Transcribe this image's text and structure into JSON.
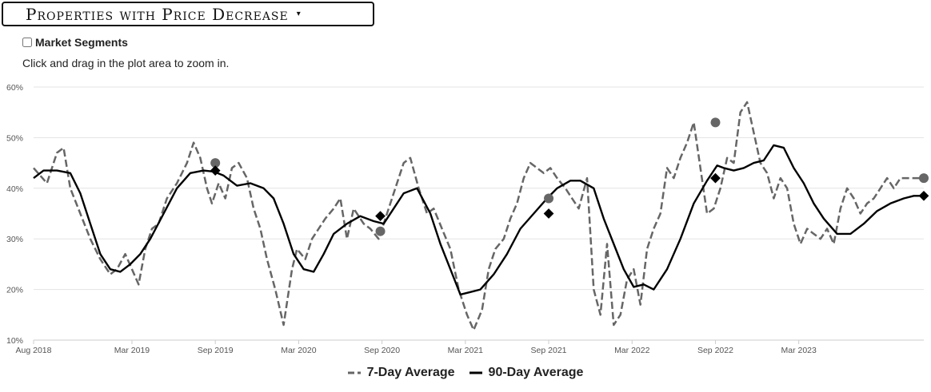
{
  "selector": {
    "label": "Properties with Price Decrease",
    "caret": "▾"
  },
  "segments_label": "Market Segments",
  "hint": "Click and drag in the plot area to zoom in.",
  "colors": {
    "seven_day": "#666666",
    "ninety_day": "#000000",
    "grid": "#e3e3e3"
  },
  "chart_data": {
    "type": "line",
    "title": "Properties with Price Decrease",
    "xlabel": "",
    "ylabel": "",
    "ylim": [
      10,
      60
    ],
    "xlim": [
      2018.58,
      2023.92
    ],
    "y_ticks": [
      "10%",
      "20%",
      "30%",
      "40%",
      "50%",
      "60%"
    ],
    "y_tick_values": [
      10,
      20,
      30,
      40,
      50,
      60
    ],
    "x_ticks": [
      {
        "label": "Aug 2018",
        "x": 2018.58
      },
      {
        "label": "Mar 2019",
        "x": 2019.17
      },
      {
        "label": "Sep 2019",
        "x": 2019.67
      },
      {
        "label": "Mar 2020",
        "x": 2020.17
      },
      {
        "label": "Sep 2020",
        "x": 2020.67
      },
      {
        "label": "Mar 2021",
        "x": 2021.17
      },
      {
        "label": "Sep 2021",
        "x": 2021.67
      },
      {
        "label": "Mar 2022",
        "x": 2022.17
      },
      {
        "label": "Sep 2022",
        "x": 2022.67
      },
      {
        "label": "Mar 2023",
        "x": 2023.17
      }
    ],
    "series": [
      {
        "name": "7-Day Average",
        "style": "dashed",
        "x": [
          2018.58,
          2018.66,
          2018.72,
          2018.76,
          2018.8,
          2018.86,
          2018.92,
          2018.98,
          2019.04,
          2019.08,
          2019.13,
          2019.17,
          2019.21,
          2019.25,
          2019.29,
          2019.33,
          2019.38,
          2019.44,
          2019.5,
          2019.54,
          2019.58,
          2019.62,
          2019.65,
          2019.69,
          2019.73,
          2019.77,
          2019.81,
          2019.86,
          2019.9,
          2019.94,
          2019.98,
          2020.03,
          2020.08,
          2020.13,
          2020.16,
          2020.21,
          2020.25,
          2020.29,
          2020.33,
          2020.38,
          2020.42,
          2020.46,
          2020.5,
          2020.56,
          2020.6,
          2020.65,
          2020.68,
          2020.74,
          2020.8,
          2020.84,
          2020.89,
          2020.94,
          2020.98,
          2021.03,
          2021.08,
          2021.13,
          2021.18,
          2021.22,
          2021.27,
          2021.31,
          2021.35,
          2021.4,
          2021.44,
          2021.48,
          2021.52,
          2021.56,
          2021.6,
          2021.64,
          2021.68,
          2021.72,
          2021.77,
          2021.81,
          2021.85,
          2021.9,
          2021.94,
          2021.98,
          2022.02,
          2022.06,
          2022.1,
          2022.14,
          2022.18,
          2022.22,
          2022.26,
          2022.3,
          2022.34,
          2022.38,
          2022.42,
          2022.46,
          2022.5,
          2022.54,
          2022.58,
          2022.62,
          2022.66,
          2022.7,
          2022.74,
          2022.78,
          2022.82,
          2022.86,
          2022.9,
          2022.94,
          2022.98,
          2023.02,
          2023.06,
          2023.1,
          2023.14,
          2023.18,
          2023.22,
          2023.26,
          2023.3,
          2023.34,
          2023.38,
          2023.42,
          2023.46,
          2023.5,
          2023.54,
          2023.58,
          2023.62,
          2023.66,
          2023.7,
          2023.74,
          2023.78,
          2023.82,
          2023.86,
          2023.9,
          2023.92
        ],
        "values": [
          44,
          41,
          47,
          48,
          40,
          35,
          30,
          26,
          23,
          24,
          27,
          24,
          21,
          28,
          32,
          33,
          38,
          41,
          45,
          49,
          46,
          40,
          37,
          41,
          38,
          44,
          45,
          42,
          36,
          32,
          26,
          20,
          13,
          24,
          28,
          26,
          30,
          32,
          34,
          36,
          38,
          30,
          36,
          33,
          32,
          30,
          33,
          39,
          45,
          46,
          40,
          35,
          36,
          32,
          28,
          20,
          15,
          12,
          16,
          24,
          28,
          30,
          34,
          37,
          42,
          45,
          44,
          43,
          44,
          42,
          40,
          38,
          36,
          42,
          20,
          15,
          29,
          13,
          15,
          22,
          24,
          17,
          28,
          32,
          35,
          44,
          42,
          46,
          49,
          53,
          44,
          35,
          36,
          40,
          46,
          45,
          55,
          57,
          51,
          45,
          43,
          38,
          42,
          40,
          33,
          29,
          32,
          31,
          30,
          32,
          29,
          36,
          40,
          38,
          35,
          37,
          38,
          40,
          42,
          40,
          42,
          42,
          42,
          42,
          42
        ],
        "marker": {
          "x": 2023.92,
          "value": 42
        }
      },
      {
        "name": "90-Day Average",
        "style": "solid",
        "x": [
          2018.58,
          2018.64,
          2018.72,
          2018.8,
          2018.86,
          2018.92,
          2018.98,
          2019.04,
          2019.1,
          2019.16,
          2019.22,
          2019.28,
          2019.36,
          2019.44,
          2019.52,
          2019.6,
          2019.66,
          2019.72,
          2019.8,
          2019.88,
          2019.96,
          2020.02,
          2020.08,
          2020.14,
          2020.2,
          2020.26,
          2020.32,
          2020.38,
          2020.46,
          2020.54,
          2020.62,
          2020.68,
          2020.74,
          2020.8,
          2020.88,
          2020.96,
          2021.02,
          2021.08,
          2021.14,
          2021.2,
          2021.26,
          2021.34,
          2021.42,
          2021.5,
          2021.58,
          2021.66,
          2021.72,
          2021.8,
          2021.86,
          2021.94,
          2022.0,
          2022.06,
          2022.12,
          2022.18,
          2022.24,
          2022.3,
          2022.38,
          2022.46,
          2022.54,
          2022.62,
          2022.68,
          2022.72,
          2022.78,
          2022.84,
          2022.9,
          2022.96,
          2023.02,
          2023.08,
          2023.14,
          2023.2,
          2023.26,
          2023.32,
          2023.4,
          2023.48,
          2023.56,
          2023.64,
          2023.72,
          2023.8,
          2023.86,
          2023.92
        ],
        "values": [
          42,
          43.5,
          43.5,
          43,
          39,
          33,
          27,
          24,
          23.5,
          25,
          27,
          30,
          35,
          40,
          43,
          43.5,
          43.3,
          42.5,
          40.5,
          41,
          40,
          38,
          33,
          27,
          24,
          23.5,
          27,
          31,
          33,
          34.5,
          33.5,
          33,
          36,
          39,
          40,
          35,
          29,
          24,
          19,
          19.5,
          20,
          23,
          27,
          32,
          35,
          38,
          40,
          41.5,
          41.5,
          40,
          34,
          29,
          24,
          20.5,
          21,
          20,
          24,
          30,
          37,
          41.5,
          44.5,
          44,
          43.5,
          44,
          45,
          45.5,
          48.5,
          48,
          44,
          41,
          37,
          34,
          31,
          31,
          33,
          35.5,
          37,
          38,
          38.5,
          38.5
        ],
        "marker": {
          "x": 2023.92,
          "value": 38.5
        }
      }
    ],
    "highlighted_points": [
      {
        "series": "7-Day Average",
        "x": 2019.67,
        "value": 45
      },
      {
        "series": "7-Day Average",
        "x": 2020.66,
        "value": 31.5
      },
      {
        "series": "7-Day Average",
        "x": 2021.67,
        "value": 38
      },
      {
        "series": "7-Day Average",
        "x": 2022.67,
        "value": 53
      },
      {
        "series": "90-Day Average",
        "x": 2019.67,
        "value": 43.5
      },
      {
        "series": "90-Day Average",
        "x": 2020.66,
        "value": 34.5
      },
      {
        "series": "90-Day Average",
        "x": 2021.67,
        "value": 35
      },
      {
        "series": "90-Day Average",
        "x": 2022.67,
        "value": 42
      }
    ]
  },
  "legend": {
    "seven_day": "7-Day Average",
    "ninety_day": "90-Day Average"
  }
}
